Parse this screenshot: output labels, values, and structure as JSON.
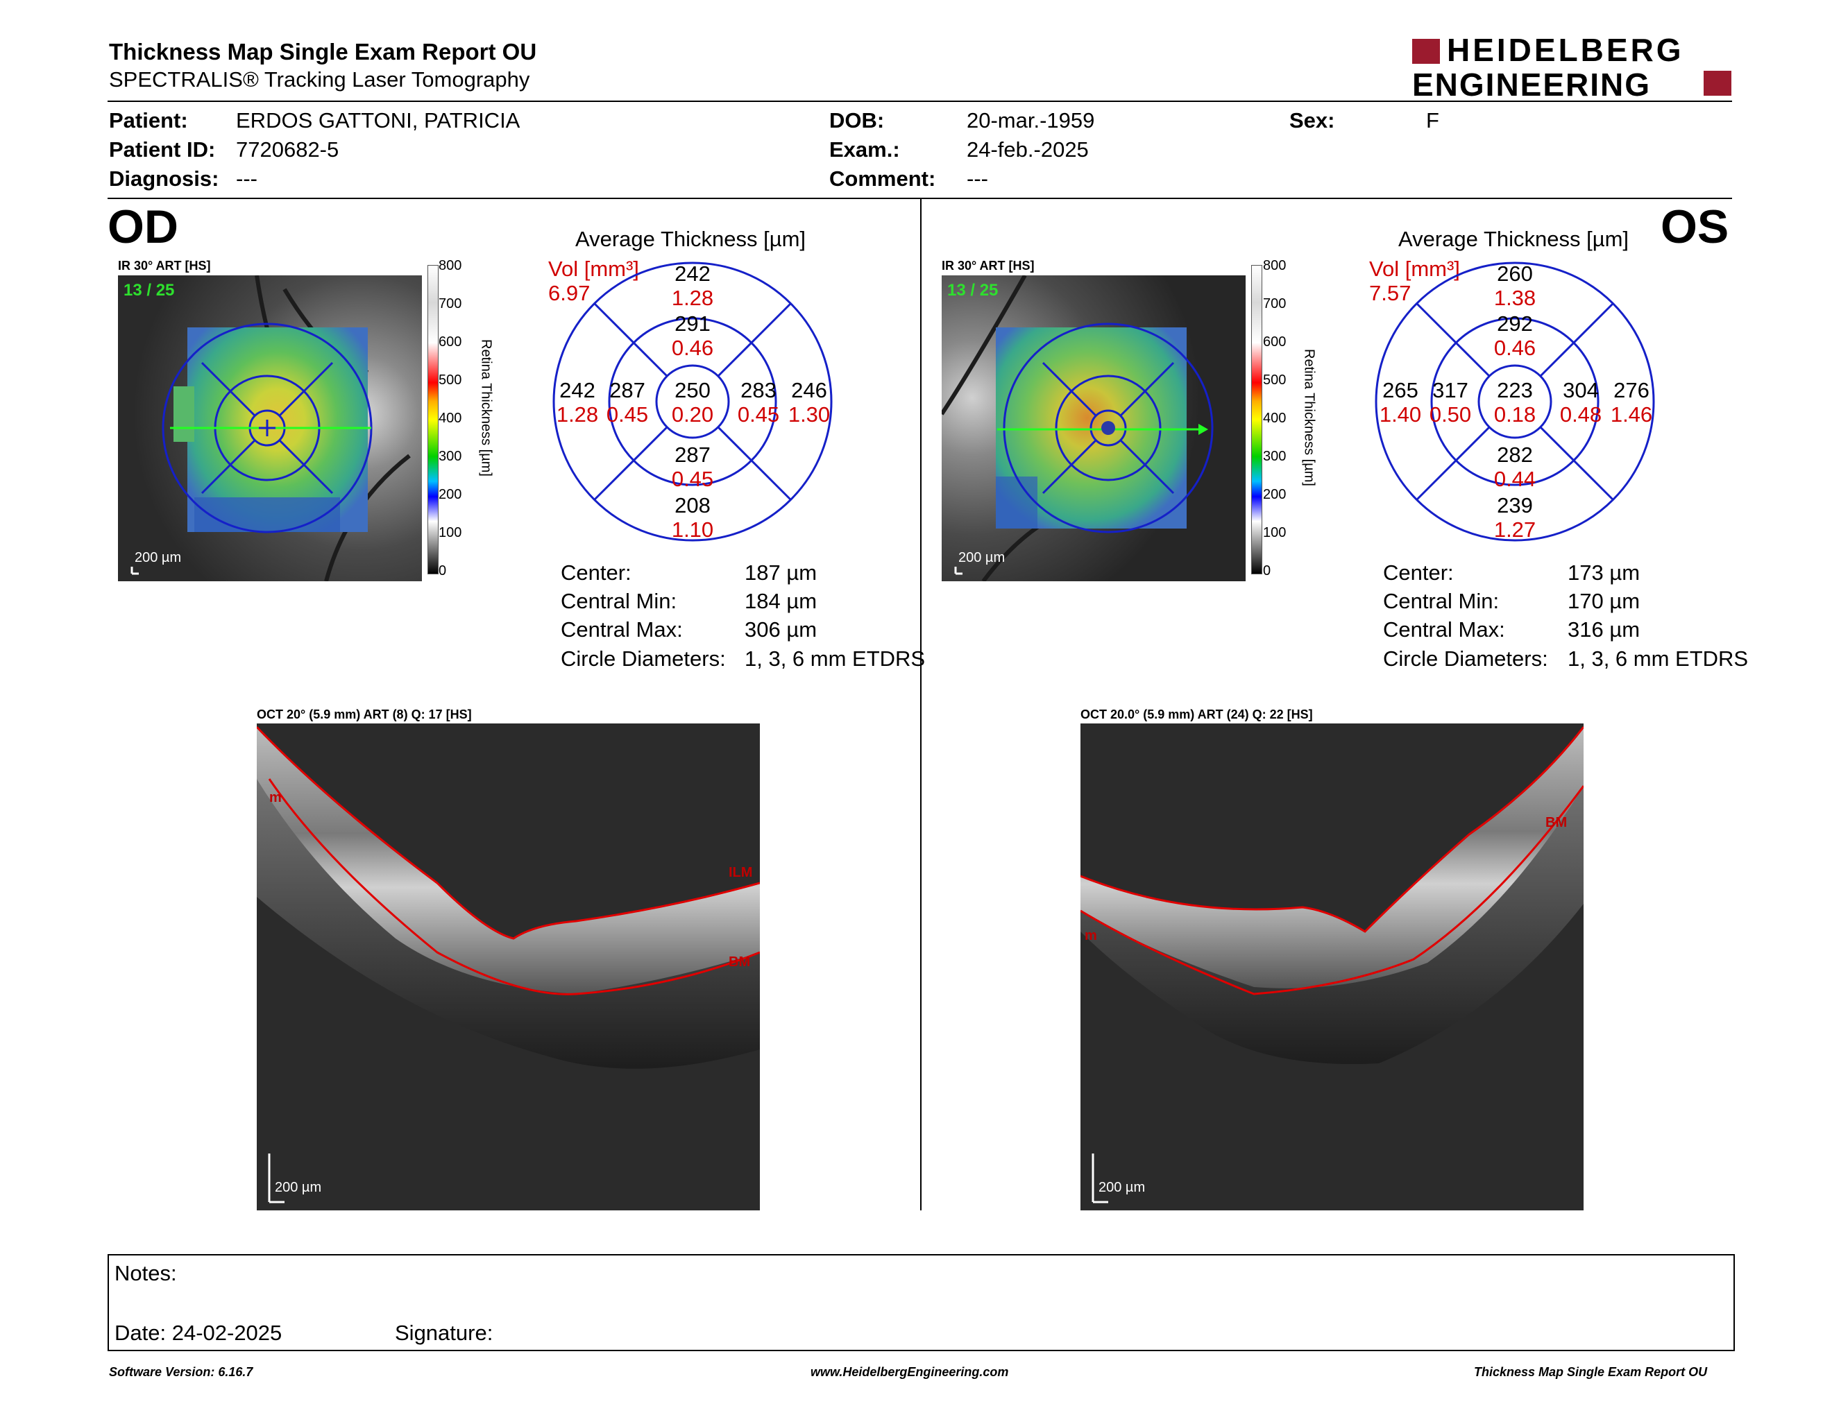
{
  "header": {
    "title": "Thickness Map Single Exam Report OU",
    "subtitle": "SPECTRALIS® Tracking Laser Tomography",
    "logo_line1": "HEIDELBERG",
    "logo_line2": "ENGINEERING",
    "brand_color": "#9b1b2e"
  },
  "patient": {
    "patient_label": "Patient:",
    "patient_value": "ERDOS GATTONI, PATRICIA",
    "id_label": "Patient ID:",
    "id_value": "7720682-5",
    "diagnosis_label": "Diagnosis:",
    "diagnosis_value": "---",
    "dob_label": "DOB:",
    "dob_value": "20-mar.-1959",
    "exam_label": "Exam.:",
    "exam_value": "24-feb.-2025",
    "comment_label": "Comment:",
    "comment_value": "---",
    "sex_label": "Sex:",
    "sex_value": "F"
  },
  "colorbar": {
    "axis_label": "Retina Thickness [µm]",
    "ticks": [
      "800",
      "700",
      "600",
      "500",
      "400",
      "300",
      "200",
      "100",
      "0"
    ]
  },
  "od": {
    "eye": "OD",
    "ir_label": "IR 30° ART [HS]",
    "scan_counter": "13 / 25",
    "scale": "200 µm",
    "avg_title": "Average Thickness [µm]",
    "vol_label": "Vol [mm³]",
    "vol_value": "6.97",
    "sectors": {
      "center": {
        "t": "250",
        "v": "0.20"
      },
      "inner_sup": {
        "t": "291",
        "v": "0.46"
      },
      "inner_inf": {
        "t": "287",
        "v": "0.45"
      },
      "inner_left": {
        "t": "287",
        "v": "0.45"
      },
      "inner_right": {
        "t": "283",
        "v": "0.45"
      },
      "outer_sup": {
        "t": "242",
        "v": "1.28"
      },
      "outer_inf": {
        "t": "208",
        "v": "1.10"
      },
      "outer_left": {
        "t": "242",
        "v": "1.28"
      },
      "outer_right": {
        "t": "246",
        "v": "1.30"
      }
    },
    "stats": {
      "center_label": "Center:",
      "center_value": "187 µm",
      "cmin_label": "Central Min:",
      "cmin_value": "184 µm",
      "cmax_label": "Central Max:",
      "cmax_value": "306 µm",
      "diam_label": "Circle Diameters:",
      "diam_value": "1, 3, 6 mm ETDRS"
    },
    "oct_label": "OCT 20° (5.9 mm) ART (8) Q: 17 [HS]",
    "oct_scale": "200 µm",
    "layer_ilm": "ILM",
    "layer_bm": "BM",
    "layer_left": "m"
  },
  "os": {
    "eye": "OS",
    "ir_label": "IR 30° ART [HS]",
    "scan_counter": "13 / 25",
    "scale": "200 µm",
    "avg_title": "Average Thickness [µm]",
    "vol_label": "Vol [mm³]",
    "vol_value": "7.57",
    "sectors": {
      "center": {
        "t": "223",
        "v": "0.18"
      },
      "inner_sup": {
        "t": "292",
        "v": "0.46"
      },
      "inner_inf": {
        "t": "282",
        "v": "0.44"
      },
      "inner_left": {
        "t": "317",
        "v": "0.50"
      },
      "inner_right": {
        "t": "304",
        "v": "0.48"
      },
      "outer_sup": {
        "t": "260",
        "v": "1.38"
      },
      "outer_inf": {
        "t": "239",
        "v": "1.27"
      },
      "outer_left": {
        "t": "265",
        "v": "1.40"
      },
      "outer_right": {
        "t": "276",
        "v": "1.46"
      }
    },
    "stats": {
      "center_label": "Center:",
      "center_value": "173 µm",
      "cmin_label": "Central Min:",
      "cmin_value": "170 µm",
      "cmax_label": "Central Max:",
      "cmax_value": "316 µm",
      "diam_label": "Circle Diameters:",
      "diam_value": "1, 3, 6 mm ETDRS"
    },
    "oct_label": "OCT 20.0° (5.9 mm) ART (24) Q: 22 [HS]",
    "oct_scale": "200 µm",
    "layer_bm": "BM",
    "layer_left": "m"
  },
  "notes": {
    "notes_label": "Notes:",
    "date_label": "Date: 24-02-2025",
    "signature_label": "Signature:"
  },
  "footer": {
    "software": "Software Version: 6.16.7",
    "website": "www.HeidelbergEngineering.com",
    "report_name": "Thickness Map Single Exam Report OU"
  }
}
